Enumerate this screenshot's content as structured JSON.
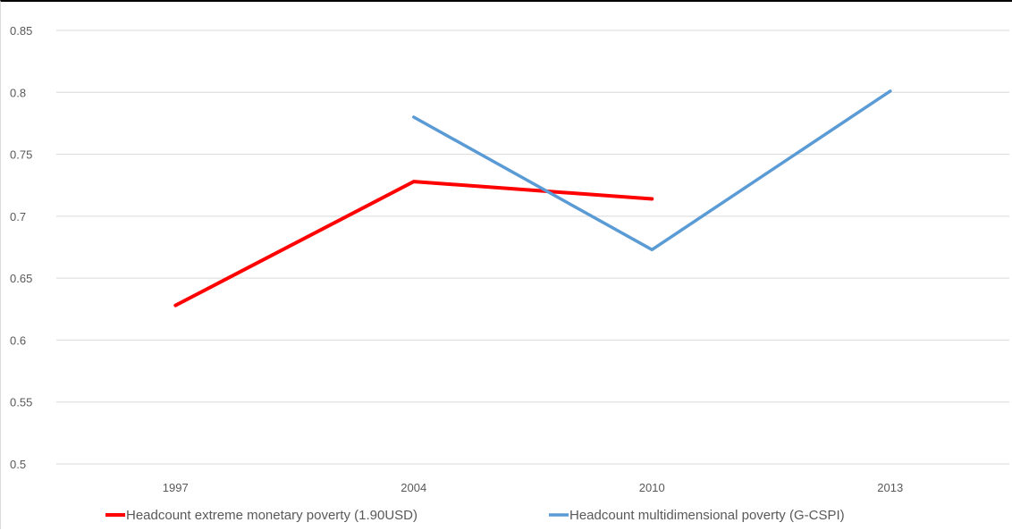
{
  "chart_data": {
    "type": "line",
    "categories": [
      "1997",
      "2004",
      "2010",
      "2013"
    ],
    "ylim": [
      0.5,
      0.85
    ],
    "yticks": [
      "0.5",
      "0.55",
      "0.6",
      "0.65",
      "0.7",
      "0.75",
      "0.8",
      "0.85"
    ],
    "grid": true,
    "legend_position": "bottom",
    "series": [
      {
        "name": "Headcount extreme monetary poverty (1.90USD)",
        "color": "#ff0000",
        "values": [
          0.628,
          0.728,
          0.714,
          null
        ]
      },
      {
        "name": "Headcount multidimensional poverty (G-CSPI)",
        "color": "#5b9bd5",
        "values": [
          null,
          0.78,
          0.673,
          0.801
        ]
      }
    ]
  }
}
